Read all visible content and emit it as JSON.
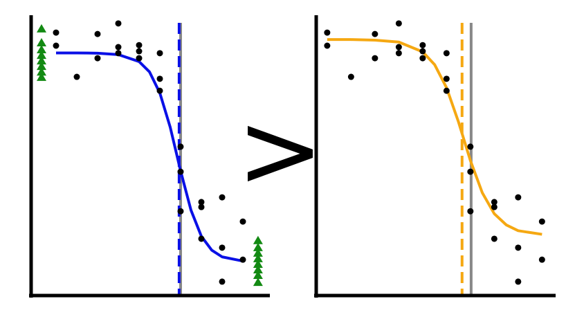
{
  "chart_data": [
    {
      "type": "scatter",
      "xlim": [
        -0.2,
        11.3
      ],
      "ylim": [
        0,
        100
      ],
      "series": [
        {
          "type": "line",
          "color": "#0a10e6",
          "x": [
            1,
            2,
            3,
            4,
            5,
            5.5,
            6,
            6.5,
            7,
            7.5,
            8,
            8.5,
            9,
            10
          ],
          "values": [
            87.2,
            87.2,
            87.1,
            86.6,
            84.1,
            80.4,
            72.8,
            60.5,
            44.8,
            30.7,
            21.3,
            16.3,
            13.9,
            12.4
          ]
        },
        {
          "type": "scatter",
          "color": "#000000",
          "marker": "circle",
          "x": [
            1,
            1,
            2,
            3,
            3,
            4,
            4,
            4,
            5,
            5,
            5,
            6,
            6,
            6,
            7,
            7,
            7,
            8,
            8,
            8,
            9,
            9,
            9,
            10,
            10
          ],
          "values": [
            94.5,
            89.8,
            78.6,
            94,
            85.3,
            97.8,
            89.3,
            87.1,
            90,
            87.8,
            85.3,
            87.1,
            77.9,
            73.6,
            53.5,
            44.5,
            30.3,
            33.6,
            31.8,
            20.4,
            35.3,
            17.2,
            5,
            26.6,
            12.9
          ]
        },
        {
          "type": "scatter",
          "color": "#138a13",
          "marker": "triangle",
          "x": [
            0.3,
            0.3,
            0.3,
            0.3,
            0.3,
            0.3,
            0.3,
            0.3,
            10.73,
            10.73,
            10.73,
            10.73,
            10.73,
            10.73,
            10.73,
            10.73
          ],
          "values": [
            95.8,
            90.8,
            88.3,
            86.3,
            84.3,
            82.3,
            80.3,
            78.4,
            19.7,
            17.2,
            15.2,
            13.2,
            11.2,
            9.2,
            7.2,
            4.7
          ]
        }
      ],
      "vlines": [
        {
          "x": 7.0,
          "color": "#888888",
          "dashed": false
        },
        {
          "x": 6.93,
          "color": "#0a10e6",
          "dashed": true
        }
      ]
    },
    {
      "type": "scatter",
      "xlim": [
        0.54,
        10.57
      ],
      "ylim": [
        0,
        100
      ],
      "series": [
        {
          "type": "line",
          "color": "#f5a812",
          "x": [
            1,
            2,
            3,
            4,
            5,
            5.5,
            6,
            6.5,
            7,
            7.5,
            8,
            8.5,
            9,
            10
          ],
          "values": [
            92,
            92,
            91.8,
            91.1,
            87.6,
            83,
            74.7,
            62.4,
            48.5,
            36.9,
            29.4,
            25.4,
            23.3,
            22
          ]
        },
        {
          "type": "scatter",
          "color": "#000000",
          "marker": "circle",
          "x": [
            1,
            1,
            2,
            3,
            3,
            4,
            4,
            4,
            5,
            5,
            5,
            6,
            6,
            6,
            7,
            7,
            7,
            8,
            8,
            8,
            9,
            9,
            9,
            10,
            10
          ],
          "values": [
            94.5,
            89.8,
            78.6,
            94,
            85.3,
            97.8,
            89.3,
            87.1,
            90,
            87.8,
            85.3,
            87.1,
            77.9,
            73.6,
            53.5,
            44.5,
            30.3,
            33.6,
            31.8,
            20.4,
            35.3,
            17.2,
            5,
            26.6,
            12.9
          ]
        }
      ],
      "vlines": [
        {
          "x": 7.03,
          "color": "#888888",
          "dashed": false
        },
        {
          "x": 6.65,
          "color": "#f5a812",
          "dashed": true
        }
      ]
    }
  ],
  "comparison": ">"
}
